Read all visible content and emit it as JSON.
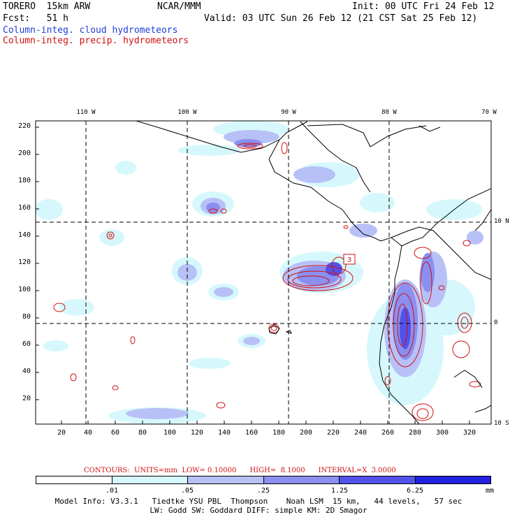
{
  "header": {
    "model": "TORERO  15km ARW",
    "org": "NCAR/MMM",
    "init": "Init: 00 UTC Fri 24 Feb 12",
    "fcst": "Fcst:   51 h",
    "valid": "Valid: 03 UTC Sun 26 Feb 12 (21 CST Sat 25 Feb 12)",
    "field1": "Column-integ. cloud hydrometeors",
    "field2": "Column-integ. precip. hydrometeors"
  },
  "map": {
    "lon_labels": [
      "110 W",
      "100 W",
      "90 W",
      "80 W",
      "70 W"
    ],
    "lat_labels": [
      "10 N",
      "0",
      "10 S"
    ],
    "y_ticks": [
      "220",
      "200",
      "180",
      "160",
      "140",
      "120",
      "100",
      "80",
      "60",
      "40",
      "20"
    ],
    "x_ticks": [
      "20",
      "40",
      "60",
      "80",
      "100",
      "120",
      "140",
      "160",
      "180",
      "200",
      "220",
      "240",
      "260",
      "280",
      "300",
      "320"
    ],
    "max_label": "3"
  },
  "contours": {
    "text": "CONTOURS:  UNITS=mm  LOW= 0.10000      HIGH=  8.1000      INTERVAL=X  3.0000"
  },
  "colorbar": {
    "levels": [
      ".01",
      ".05",
      ".25",
      "1.25",
      "6.25"
    ],
    "unit": "mm",
    "colors": [
      "#ffffff",
      "#d6f8fc",
      "#b7c1f7",
      "#8a8ff0",
      "#5252ea",
      "#2121e0"
    ]
  },
  "footer": {
    "line1": "Model Info: V3.3.1   Tiedtke YSU PBL  Thompson    Noah LSM  15 km,   44 levels,   57 sec",
    "line2": "LW: Godd SW: Goddard DIFF: simple KM: 2D Smagor"
  },
  "colors": {
    "cloud_light": "#d6f8fc",
    "cloud_mid": "#b7c1f7",
    "cloud_dark": "#8a8ff0",
    "precip": "#d01010"
  }
}
